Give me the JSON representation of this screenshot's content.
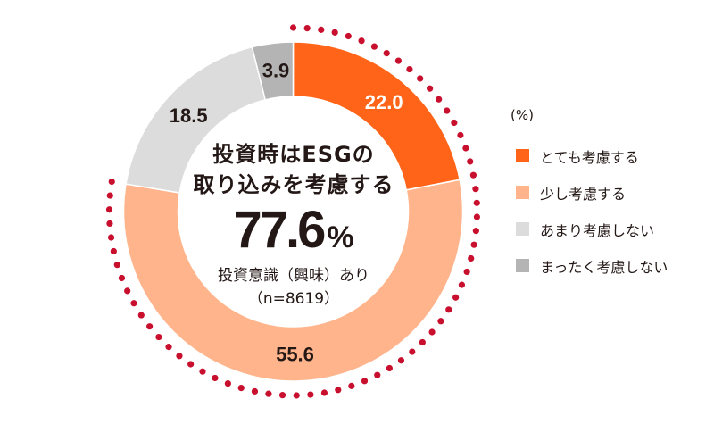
{
  "chart_data": {
    "type": "pie",
    "variant": "donut",
    "title": "投資時はESGの取り込みを考慮する",
    "unit": "%",
    "categories": [
      "とても考慮する",
      "少し考慮する",
      "あまり考慮しない",
      "まったく考慮しない"
    ],
    "values": [
      22.0,
      55.6,
      18.5,
      3.9
    ],
    "value_labels": [
      "22.0",
      "55.6",
      "18.5",
      "3.9"
    ],
    "colors": [
      "#ff6418",
      "#ffb48c",
      "#dcdcdc",
      "#b4b4b4"
    ],
    "label_colors": [
      "#ffffff",
      "#231815",
      "#231815",
      "#231815"
    ],
    "highlight": {
      "style": "dotted-arc",
      "color": "#c8102e",
      "covers": [
        "とても考慮する",
        "少し考慮する"
      ],
      "total": 77.6
    },
    "legend_position": "right"
  },
  "center": {
    "title_line1": "投資時はESGの",
    "title_line2": "取り込みを考慮する",
    "big_value": "77.6",
    "big_unit": "%",
    "caption": "投資意識（興味）あり",
    "sample": "（n=8619）"
  },
  "legend": {
    "unit": "(%)",
    "items": [
      {
        "label": "とても考慮する",
        "color": "#ff6418"
      },
      {
        "label": "少し考慮する",
        "color": "#ffb48c"
      },
      {
        "label": "あまり考慮しない",
        "color": "#dcdcdc"
      },
      {
        "label": "まったく考慮しない",
        "color": "#b4b4b4"
      }
    ]
  }
}
